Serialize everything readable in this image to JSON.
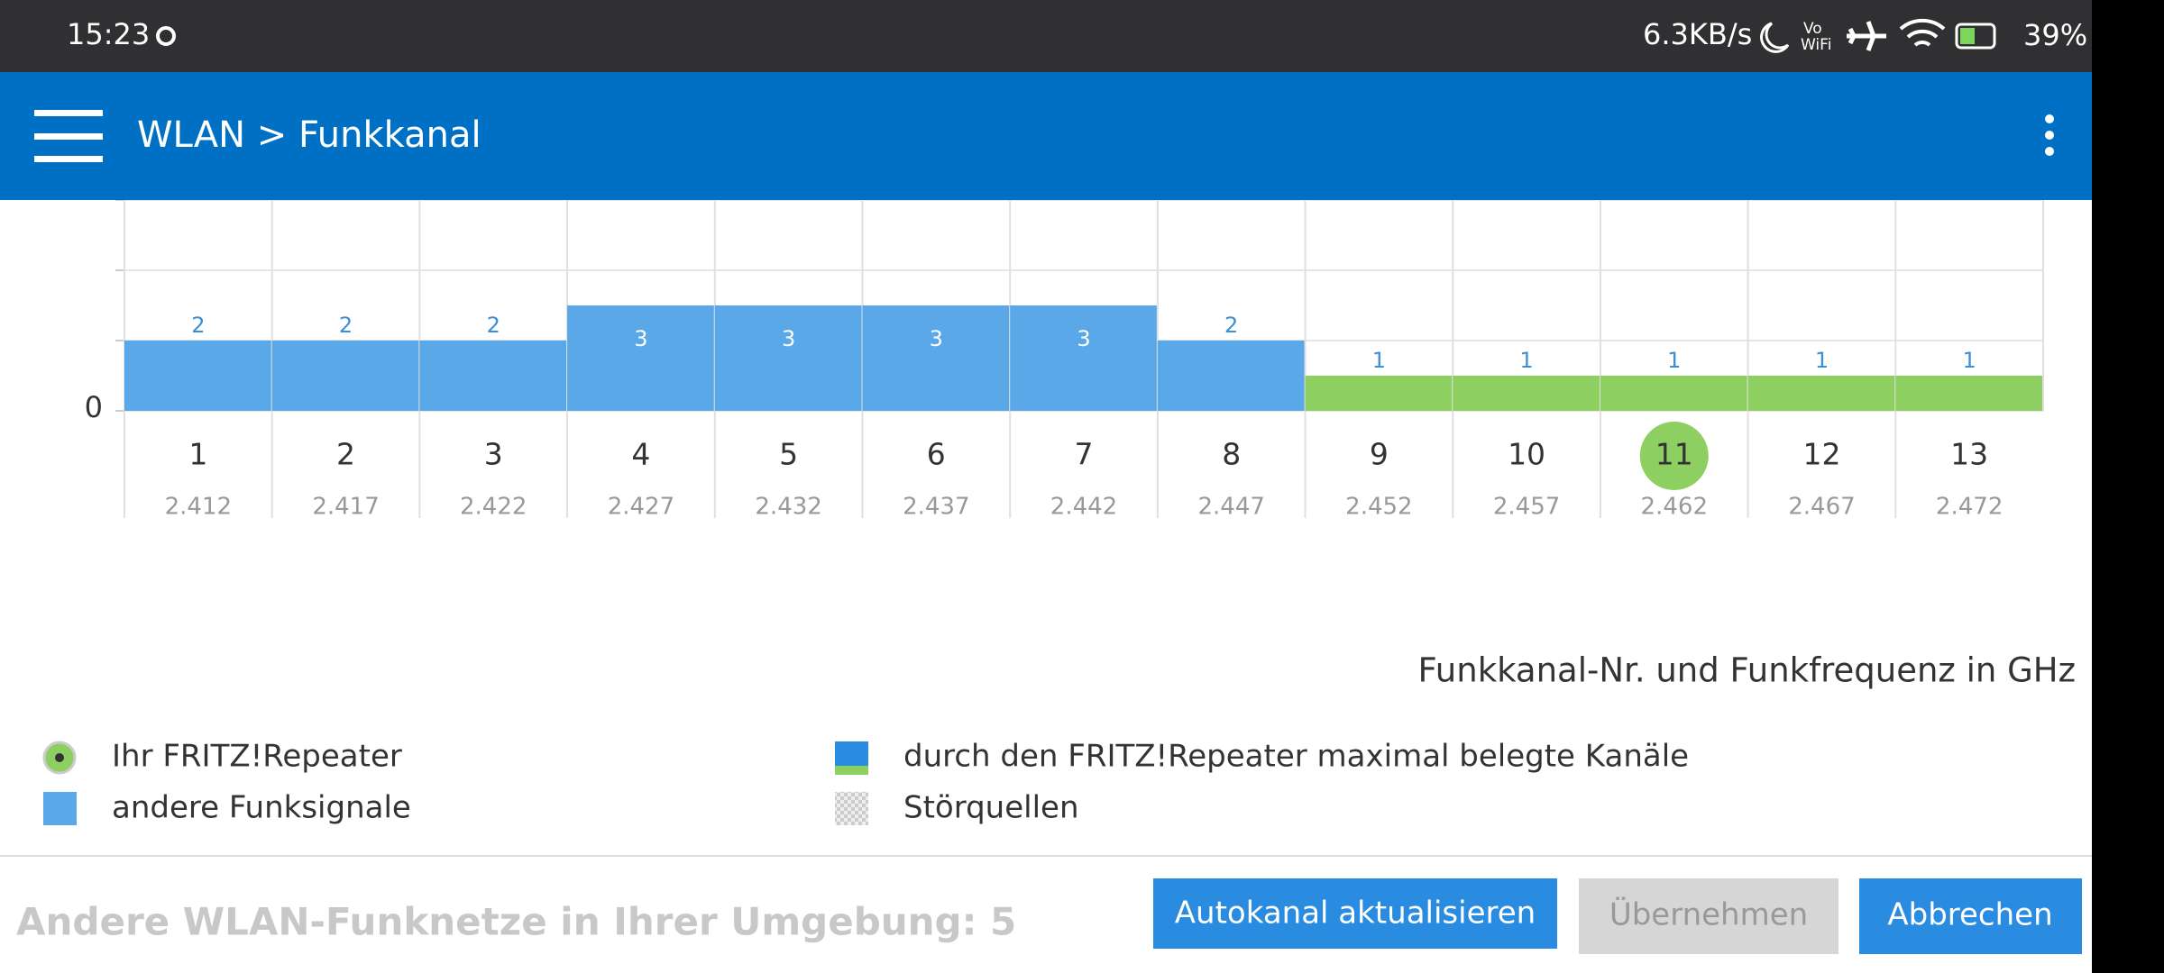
{
  "status_bar": {
    "time": "15:23",
    "speed": "6.3KB/s",
    "battery": "39%"
  },
  "app_bar": {
    "title": "WLAN > Funkkanal"
  },
  "chart_data": {
    "type": "bar",
    "categories": [
      "1",
      "2",
      "3",
      "4",
      "5",
      "6",
      "7",
      "8",
      "9",
      "10",
      "11",
      "12",
      "13"
    ],
    "frequencies": [
      "2.412",
      "2.417",
      "2.422",
      "2.427",
      "2.432",
      "2.437",
      "2.442",
      "2.447",
      "2.452",
      "2.457",
      "2.462",
      "2.467",
      "2.472"
    ],
    "values": [
      2,
      2,
      2,
      3,
      3,
      3,
      3,
      2,
      1,
      1,
      1,
      1,
      1
    ],
    "colors": [
      "#5ba8e8",
      "#5ba8e8",
      "#5ba8e8",
      "#5ba8e8",
      "#5ba8e8",
      "#5ba8e8",
      "#5ba8e8",
      "#5ba8e8",
      "#8ecf62",
      "#8ecf62",
      "#8ecf62",
      "#8ecf62",
      "#8ecf62"
    ],
    "selected_category": "11",
    "ylim": [
      0,
      6
    ],
    "yticks": [
      0
    ],
    "minor_grid": [
      2,
      4,
      6
    ],
    "grid": true,
    "xlabel": "Funkkanal-Nr. und Funkfrequenz in GHz"
  },
  "legend": {
    "items": [
      "Ihr FRITZ!Repeater",
      "andere Funksignale",
      "durch den FRITZ!Repeater maximal belegte Kanäle",
      "Störquellen"
    ]
  },
  "footer": {
    "info": "Andere WLAN-Funknetze in Ihrer Umgebung: 5",
    "buttons": [
      "Autokanal aktualisieren",
      "Übernehmen",
      "Abbrechen"
    ]
  }
}
